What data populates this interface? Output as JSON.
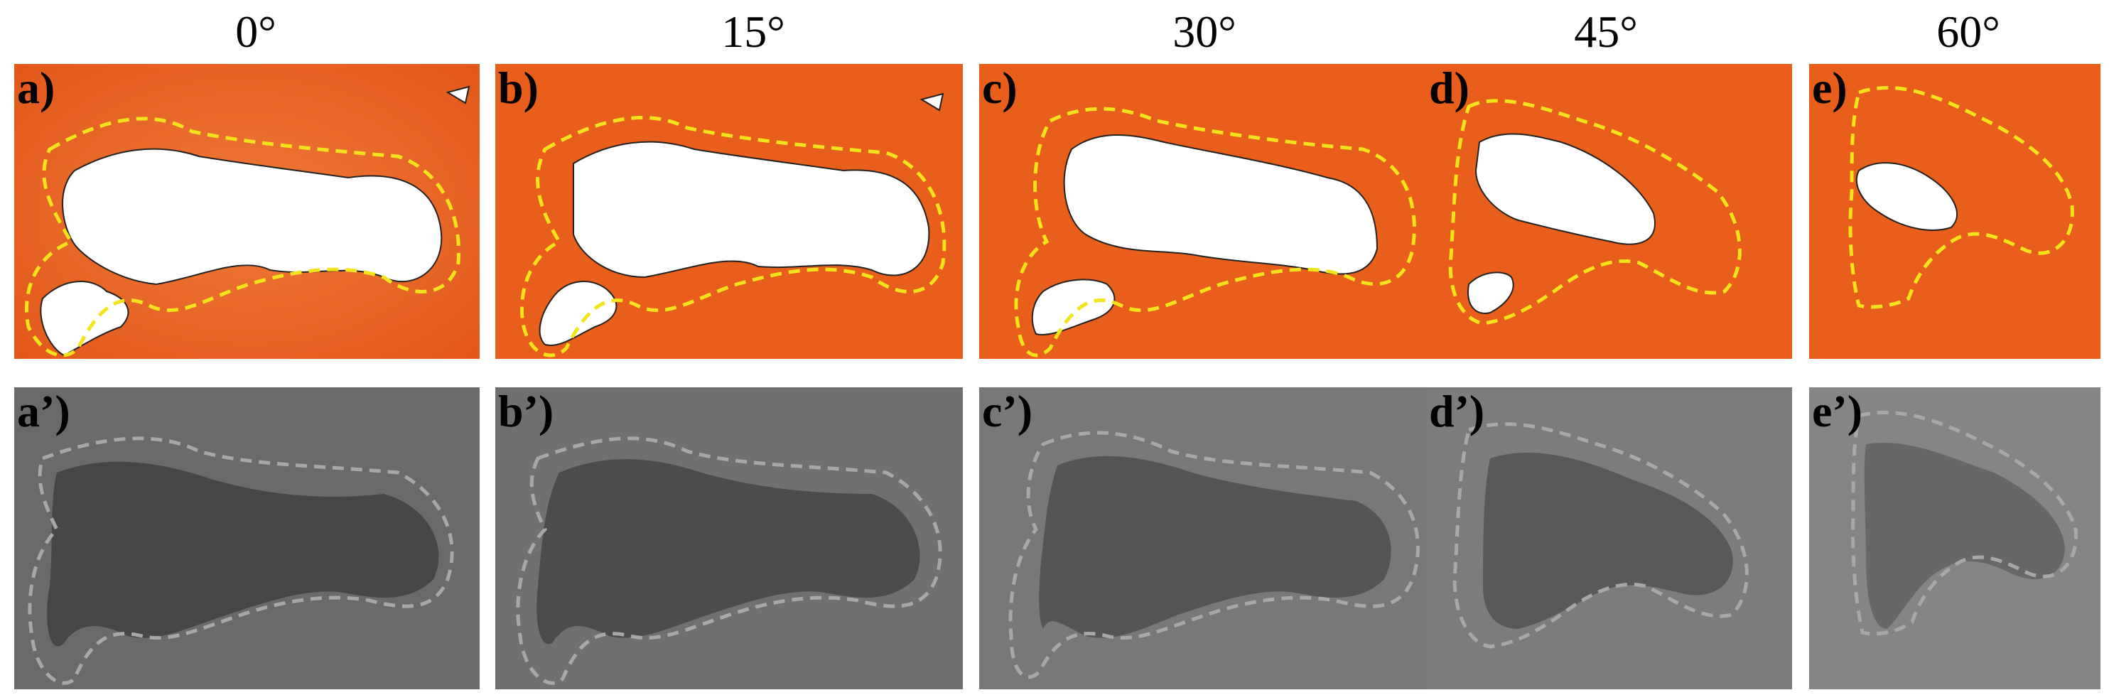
{
  "angles": [
    "0°",
    "15°",
    "30°",
    "45°",
    "60°"
  ],
  "top_labels": [
    "a)",
    "b)",
    "c)",
    "d)",
    "e)"
  ],
  "bottom_labels": [
    "a’)",
    "b’)",
    "c’)",
    "d’)",
    "e’)"
  ],
  "colors": {
    "topo_fill": "#e8601a",
    "outline_top": "#f2e41a",
    "outline_bottom": "#a8a8a8",
    "hole": "#ffffff",
    "gray_bg": "#6e6e6e"
  }
}
